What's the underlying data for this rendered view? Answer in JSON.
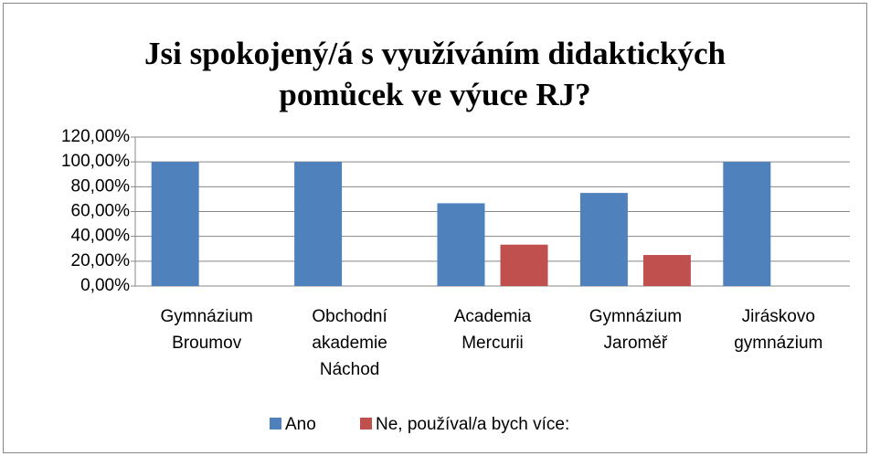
{
  "chart_data": {
    "type": "bar",
    "title": "Jsi spokojený/á s využíváním didaktických pomůcek ve výuce RJ?",
    "categories": [
      "Gymnázium Broumov",
      "Obchodní akademie Náchod",
      "Academia Mercurii",
      "Gymnázium Jaroměř",
      "Jiráskovo gymnázium"
    ],
    "series": [
      {
        "name": "Ano",
        "color": "#4f81bd",
        "values": [
          100,
          100,
          66.67,
          75,
          100
        ]
      },
      {
        "name": "Ne, používal/a bych více:",
        "color": "#c0504d",
        "values": [
          0,
          0,
          33.33,
          25,
          0
        ]
      }
    ],
    "ylim": [
      0,
      120
    ],
    "yticks": [
      {
        "value": 0,
        "label": "0,00%"
      },
      {
        "value": 20,
        "label": "20,00%"
      },
      {
        "value": 40,
        "label": "40,00%"
      },
      {
        "value": 60,
        "label": "60,00%"
      },
      {
        "value": 80,
        "label": "80,00%"
      },
      {
        "value": 100,
        "label": "100,00%"
      },
      {
        "value": 120,
        "label": "120,00%"
      }
    ],
    "grid": true,
    "legend": "bottom"
  }
}
